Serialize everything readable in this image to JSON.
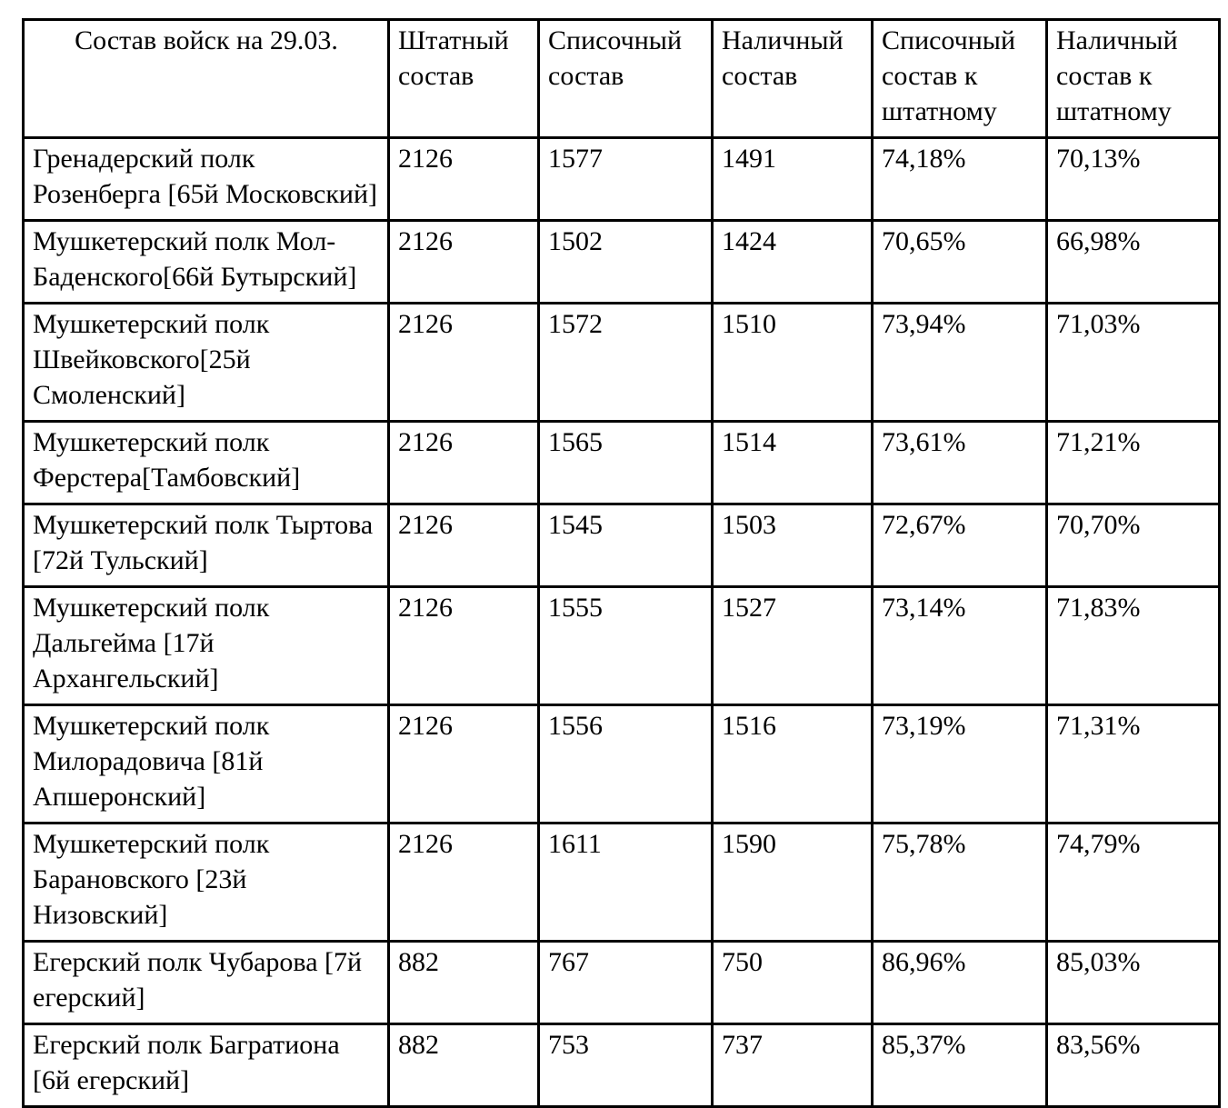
{
  "page": {
    "background_color": "#ffffff",
    "border_color": "#000000"
  },
  "table": {
    "headers": [
      {
        "label": "Состав войск на 29.03.",
        "align": "center"
      },
      {
        "label": "Штатный состав",
        "align": "left"
      },
      {
        "label": "Списочный состав",
        "align": "left"
      },
      {
        "label": "Наличный состав",
        "align": "left"
      },
      {
        "label": "Списочный состав к штатному",
        "align": "left"
      },
      {
        "label": "Наличный состав к штатному",
        "align": "left"
      }
    ],
    "rows": [
      {
        "name": "Гренадерский полк Розенберга [65й Московский]",
        "staff": "2126",
        "list": "1577",
        "present": "1491",
        "list_pct": "74,18%",
        "present_pct": "70,13%"
      },
      {
        "name": "Мушкетерский полк Мол-Баденского[66й Бутырский]",
        "staff": "2126",
        "list": "1502",
        "present": "1424",
        "list_pct": "70,65%",
        "present_pct": "66,98%"
      },
      {
        "name": "Мушкетерский полк Швейковского[25й Смоленский]",
        "staff": "2126",
        "list": "1572",
        "present": "1510",
        "list_pct": "73,94%",
        "present_pct": "71,03%"
      },
      {
        "name": "Мушкетерский полк Ферстера[Тамбовский]",
        "staff": "2126",
        "list": "1565",
        "present": "1514",
        "list_pct": "73,61%",
        "present_pct": "71,21%"
      },
      {
        "name": "Мушкетерский полк Тыртова [72й Тульский]",
        "staff": "2126",
        "list": "1545",
        "present": "1503",
        "list_pct": "72,67%",
        "present_pct": "70,70%"
      },
      {
        "name": "Мушкетерский полк Дальгейма [17й Архангельский]",
        "staff": "2126",
        "list": "1555",
        "present": "1527",
        "list_pct": "73,14%",
        "present_pct": "71,83%"
      },
      {
        "name": "Мушкетерский полк Милорадовича [81й Апшеронский]",
        "staff": "2126",
        "list": "1556",
        "present": "1516",
        "list_pct": "73,19%",
        "present_pct": "71,31%"
      },
      {
        "name": "Мушкетерский полк Барановского [23й Низовский]",
        "staff": "2126",
        "list": "1611",
        "present": "1590",
        "list_pct": "75,78%",
        "present_pct": "74,79%"
      },
      {
        "name": "Егерский полк Чубарова [7й егерский]",
        "staff": "882",
        "list": "767",
        "present": "750",
        "list_pct": "86,96%",
        "present_pct": "85,03%"
      },
      {
        "name": "Егерский полк Багратиона [6й егерский]",
        "staff": "882",
        "list": "753",
        "present": "737",
        "list_pct": "85,37%",
        "present_pct": "83,56%"
      }
    ]
  }
}
